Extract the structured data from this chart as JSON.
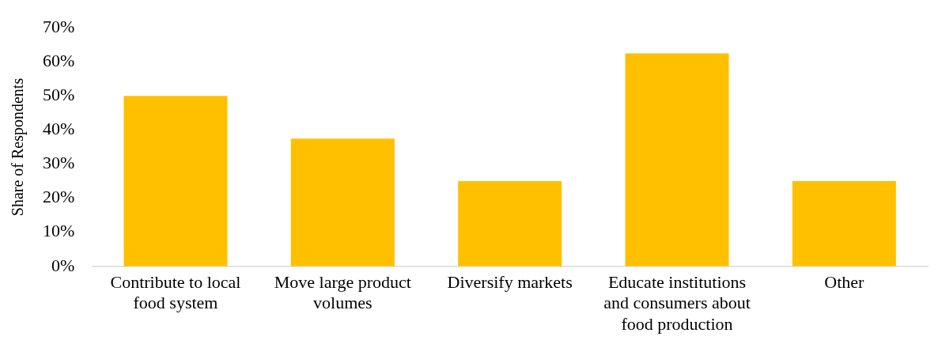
{
  "chart_data": {
    "type": "bar",
    "ylabel": "Share of Respondents",
    "categories": [
      "Contribute to local food system",
      "Move large product volumes",
      "Diversify markets",
      "Educate institutions and consumers about food production",
      "Other"
    ],
    "values": [
      50,
      37.5,
      25,
      62.5,
      25
    ],
    "color": "#ffc000",
    "ylim": [
      0,
      70
    ],
    "yticks": [
      {
        "value": 0,
        "label": "0%"
      },
      {
        "value": 10,
        "label": "10%"
      },
      {
        "value": 20,
        "label": "20%"
      },
      {
        "value": 30,
        "label": "30%"
      },
      {
        "value": 40,
        "label": "40%"
      },
      {
        "value": 50,
        "label": "50%"
      },
      {
        "value": 60,
        "label": "60%"
      },
      {
        "value": 70,
        "label": "70%"
      }
    ],
    "grid": false,
    "legend": false
  }
}
